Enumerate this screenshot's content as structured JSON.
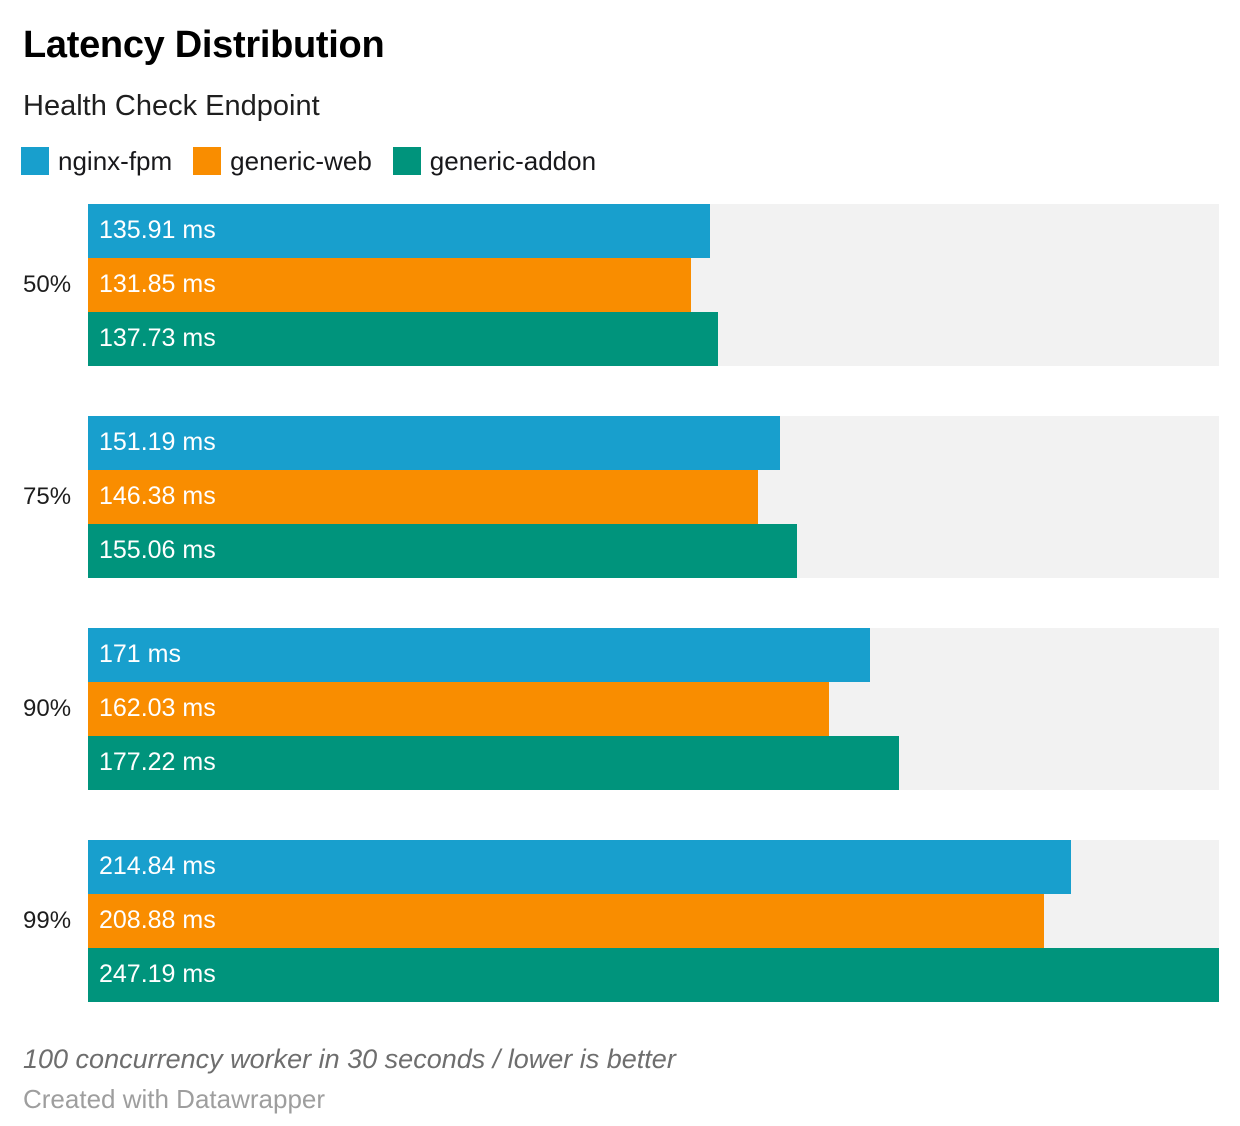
{
  "header": {
    "title": "Latency Distribution",
    "subtitle": "Health Check Endpoint"
  },
  "chart_data": {
    "type": "bar",
    "orientation": "horizontal",
    "title": "Latency Distribution",
    "subtitle": "Health Check Endpoint",
    "categories": [
      "50%",
      "75%",
      "90%",
      "99%"
    ],
    "series": [
      {
        "name": "nginx-fpm",
        "color": "#189fcd",
        "values": [
          135.91,
          151.19,
          171,
          214.84
        ],
        "labels": [
          "135.91 ms",
          "151.19 ms",
          "171 ms",
          "214.84 ms"
        ]
      },
      {
        "name": "generic-web",
        "color": "#f98d00",
        "values": [
          131.85,
          146.38,
          162.03,
          208.88
        ],
        "labels": [
          "131.85 ms",
          "146.38 ms",
          "162.03 ms",
          "208.88 ms"
        ]
      },
      {
        "name": "generic-addon",
        "color": "#00947c",
        "values": [
          137.73,
          155.06,
          177.22,
          247.19
        ],
        "labels": [
          "137.73 ms",
          "155.06 ms",
          "177.22 ms",
          "247.19 ms"
        ]
      }
    ],
    "unit": "ms",
    "xlim": [
      0,
      247.19
    ],
    "grid": false,
    "legend_position": "top",
    "value_labels": "inside-start",
    "track_color": "#f2f2f2",
    "label_text_color": "#ffffff"
  },
  "footer": {
    "note": "100 concurrency worker in 30 seconds / lower is better",
    "attribution": "Created with Datawrapper"
  }
}
